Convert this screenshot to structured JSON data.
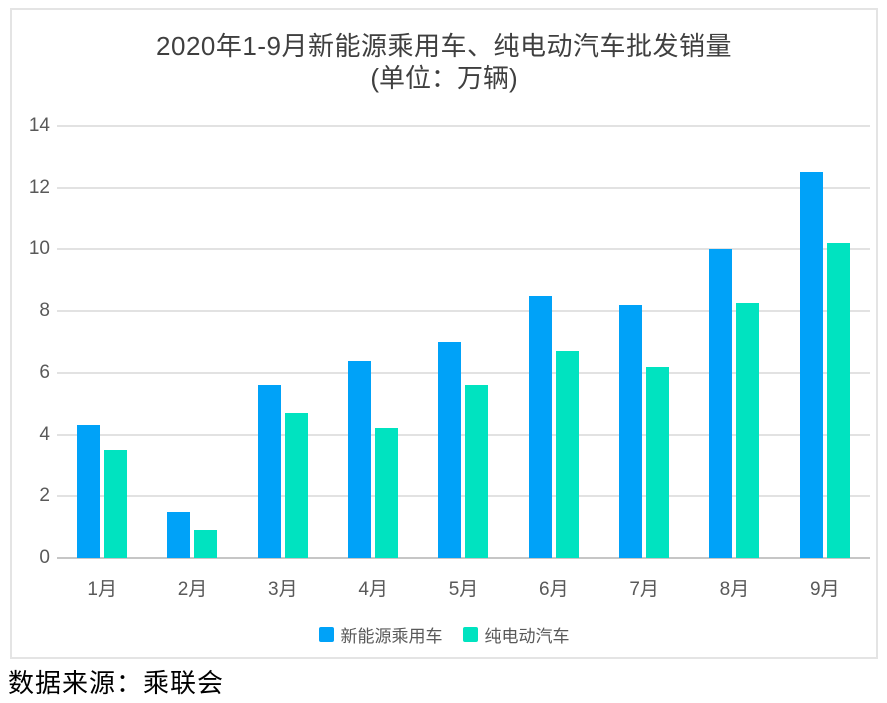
{
  "chart_data": {
    "type": "bar",
    "title": "2020年1-9月新能源乘用车、纯电动汽车批发销量",
    "subtitle": "(单位：万辆)",
    "categories": [
      "1月",
      "2月",
      "3月",
      "4月",
      "5月",
      "6月",
      "7月",
      "8月",
      "9月"
    ],
    "series": [
      {
        "name": "新能源乘用车",
        "color": "#00a2f8",
        "values": [
          4.3,
          1.5,
          5.6,
          6.4,
          7.0,
          8.5,
          8.2,
          10.0,
          12.5
        ]
      },
      {
        "name": "纯电动汽车",
        "color": "#00e3c0",
        "values": [
          3.5,
          0.9,
          4.7,
          4.2,
          5.6,
          6.7,
          6.2,
          8.25,
          10.2
        ]
      }
    ],
    "yticks": [
      0,
      2,
      4,
      6,
      8,
      10,
      12,
      14
    ],
    "ylim": [
      0,
      14
    ],
    "xlabel": "",
    "ylabel": "",
    "grid": true,
    "legend_position": "bottom",
    "colors": {
      "gridline": "#e2e2e2",
      "axis_line": "#c6c6c6",
      "tick_label": "#595959",
      "title_text": "#3f3f3f"
    }
  },
  "footer": {
    "source_label": "数据来源：乘联会"
  }
}
